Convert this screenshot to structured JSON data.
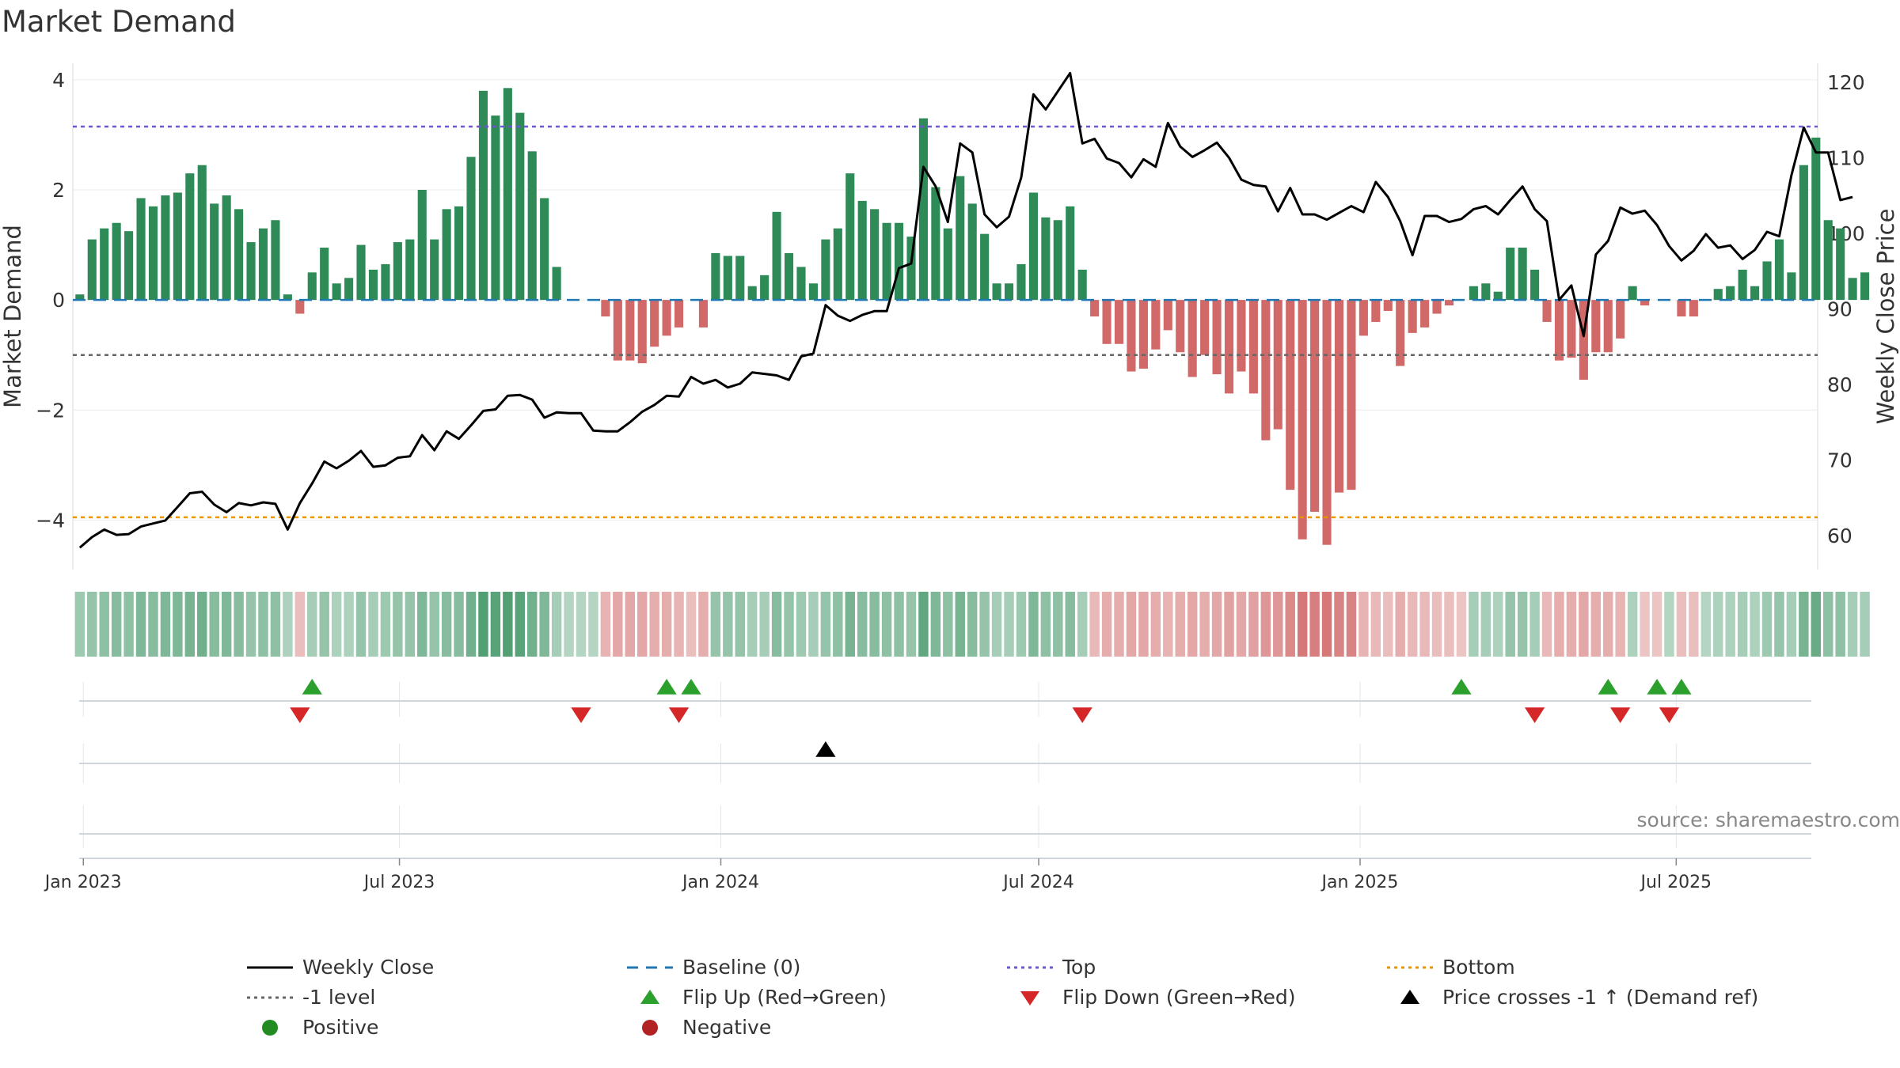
{
  "title": "Market Demand",
  "source": "source: sharemaestro.com",
  "colors": {
    "positive": "#2e8b57",
    "negative": "#cd5c5c",
    "price": "#000000",
    "baseline": "#1f77b4",
    "top": "#6a5acd",
    "bottom": "#e69500",
    "minus1": "#666666",
    "flip_up": "#2ca02c",
    "flip_down": "#d62728",
    "cross": "#000000",
    "legend_positive": "#228b22",
    "legend_negative": "#b22222"
  },
  "chart_data": {
    "type": "bar",
    "ylabel": "Market Demand",
    "y2label": "Weekly Close Price",
    "ylim": [
      -4.9,
      4.3
    ],
    "y_ticks": [
      4,
      2,
      0,
      -2,
      -4
    ],
    "y_tick_labels": [
      "4",
      "2",
      "0",
      "−2",
      "−4"
    ],
    "y2lim": [
      55.5,
      122.5
    ],
    "y2_ticks": [
      120,
      110,
      100,
      90,
      80,
      70,
      60
    ],
    "y2_tick_labels": [
      "120",
      "110",
      "100",
      "90",
      "80",
      "70",
      "60"
    ],
    "x_range": [
      "2022-12-26",
      "2025-09-20"
    ],
    "x_ticks": [
      "2023-01-01",
      "2023-07-01",
      "2024-01-01",
      "2024-07-01",
      "2025-01-01",
      "2025-07-01"
    ],
    "x_tick_labels": [
      "Jan 2023",
      "Jul 2023",
      "Jan 2024",
      "Jul 2024",
      "Jan 2025",
      "Jul 2025"
    ],
    "reference_lines": {
      "top": 3.15,
      "bottom": -3.95,
      "minus1": -1,
      "baseline": 0
    },
    "start_week": "2022-12-30",
    "bar_values": [
      0.1,
      1.1,
      1.3,
      1.4,
      1.25,
      1.85,
      1.7,
      1.9,
      1.95,
      2.3,
      2.45,
      1.75,
      1.9,
      1.65,
      1.05,
      1.3,
      1.45,
      0.1,
      -0.25,
      0.5,
      0.95,
      0.3,
      0.4,
      1.0,
      0.55,
      0.65,
      1.05,
      1.1,
      2.0,
      1.1,
      1.65,
      1.7,
      2.6,
      3.8,
      3.35,
      3.85,
      3.4,
      2.7,
      1.85,
      0.6,
      0,
      0,
      0,
      -0.3,
      -1.1,
      -1.1,
      -1.15,
      -0.85,
      -0.65,
      -0.5,
      0,
      -0.5,
      0.85,
      0.8,
      0.8,
      0.25,
      0.45,
      1.6,
      0.85,
      0.6,
      0.3,
      1.1,
      1.3,
      2.3,
      1.8,
      1.65,
      1.4,
      1.4,
      1.15,
      3.3,
      2.05,
      1.3,
      2.25,
      1.75,
      1.2,
      0.3,
      0.3,
      0.65,
      1.95,
      1.5,
      1.45,
      1.7,
      0.55,
      -0.3,
      -0.8,
      -0.8,
      -1.3,
      -1.25,
      -0.9,
      -0.55,
      -0.95,
      -1.4,
      -1.0,
      -1.35,
      -1.7,
      -1.3,
      -1.7,
      -2.55,
      -2.35,
      -3.45,
      -4.35,
      -3.85,
      -4.45,
      -3.5,
      -3.45,
      -0.65,
      -0.4,
      -0.2,
      -1.2,
      -0.6,
      -0.5,
      -0.25,
      -0.1,
      0,
      0.25,
      0.3,
      0.15,
      0.95,
      0.95,
      0.55,
      -0.4,
      -1.1,
      -1.05,
      -1.45,
      -0.95,
      -0.95,
      -0.7,
      0.25,
      -0.1,
      0,
      0,
      -0.3,
      -0.3,
      0,
      0.2,
      0.25,
      0.55,
      0.25,
      0.7,
      1.1,
      0.5,
      2.45,
      2.95,
      1.45,
      1.3,
      0.4,
      0.5
    ],
    "price_values": [
      58.4,
      59.8,
      60.8,
      60.1,
      60.2,
      61.2,
      61.6,
      62.0,
      63.8,
      65.6,
      65.8,
      64.1,
      63.1,
      64.3,
      64.0,
      64.4,
      64.2,
      60.8,
      64.3,
      66.9,
      69.8,
      68.9,
      69.9,
      71.2,
      69.1,
      69.3,
      70.3,
      70.5,
      73.3,
      71.3,
      73.8,
      72.8,
      74.6,
      76.5,
      76.7,
      78.5,
      78.6,
      78.0,
      75.6,
      76.3,
      76.2,
      76.2,
      73.9,
      73.8,
      73.8,
      75.0,
      76.4,
      77.3,
      78.5,
      78.4,
      81.0,
      80.1,
      80.6,
      79.6,
      80.1,
      81.6,
      81.4,
      81.2,
      80.6,
      83.7,
      84.1,
      90.5,
      89.1,
      88.4,
      89.2,
      89.7,
      89.7,
      95.4,
      96.0,
      108.8,
      106.2,
      101.5,
      111.9,
      110.7,
      102.5,
      100.8,
      102.2,
      107.4,
      118.4,
      116.4,
      118.8,
      121.2,
      111.9,
      112.5,
      109.9,
      109.3,
      107.4,
      109.8,
      108.8,
      114.6,
      111.5,
      110.1,
      111.0,
      112.0,
      110.0,
      107.1,
      106.4,
      106.2,
      102.9,
      106.0,
      102.5,
      102.5,
      101.8,
      102.7,
      103.6,
      102.8,
      106.8,
      104.8,
      101.6,
      97.1,
      102.3,
      102.3,
      101.5,
      101.9,
      103.2,
      103.6,
      102.5,
      104.4,
      106.2,
      103.2,
      101.6,
      91.2,
      93.1,
      86.4,
      97.2,
      99.0,
      103.4,
      102.6,
      103.0,
      101.1,
      98.3,
      96.4,
      97.7,
      99.9,
      98.1,
      98.4,
      96.6,
      97.8,
      100.2,
      99.6,
      107.7,
      114.0,
      110.7,
      110.7,
      104.4,
      104.8
    ],
    "heat_values": [
      0.4,
      0.45,
      0.5,
      0.55,
      0.5,
      0.6,
      0.55,
      0.6,
      0.6,
      0.65,
      0.7,
      0.55,
      0.6,
      0.55,
      0.45,
      0.5,
      0.5,
      0.3,
      -0.3,
      0.35,
      0.45,
      0.3,
      0.3,
      0.45,
      0.35,
      0.4,
      0.45,
      0.45,
      0.6,
      0.45,
      0.55,
      0.55,
      0.7,
      0.9,
      0.85,
      0.9,
      0.85,
      0.7,
      0.6,
      0.35,
      0.25,
      0.25,
      0.25,
      -0.4,
      -0.5,
      -0.5,
      -0.5,
      -0.45,
      -0.45,
      -0.4,
      -0.3,
      -0.45,
      0.45,
      0.45,
      0.45,
      0.35,
      0.35,
      0.55,
      0.45,
      0.4,
      0.35,
      0.45,
      0.5,
      0.65,
      0.55,
      0.55,
      0.5,
      0.5,
      0.45,
      0.8,
      0.6,
      0.5,
      0.65,
      0.55,
      0.45,
      0.35,
      0.35,
      0.4,
      0.6,
      0.5,
      0.5,
      0.55,
      0.35,
      -0.35,
      -0.45,
      -0.45,
      -0.5,
      -0.5,
      -0.45,
      -0.4,
      -0.45,
      -0.5,
      -0.45,
      -0.5,
      -0.55,
      -0.5,
      -0.55,
      -0.65,
      -0.65,
      -0.75,
      -0.9,
      -0.85,
      -0.9,
      -0.8,
      -0.8,
      -0.4,
      -0.35,
      -0.3,
      -0.45,
      -0.35,
      -0.35,
      -0.3,
      -0.3,
      -0.25,
      0.35,
      0.35,
      0.3,
      0.45,
      0.45,
      0.35,
      -0.35,
      -0.45,
      -0.45,
      -0.5,
      -0.45,
      -0.45,
      -0.4,
      0.3,
      -0.25,
      -0.25,
      0.25,
      -0.3,
      -0.3,
      0.25,
      0.3,
      0.3,
      0.35,
      0.3,
      0.4,
      0.45,
      0.35,
      0.65,
      0.75,
      0.5,
      0.5,
      0.35,
      0.35
    ],
    "flip_up_weeks": [
      19,
      48,
      50,
      113,
      125,
      129,
      131
    ],
    "flip_down_weeks": [
      18,
      41,
      49,
      82,
      119,
      126,
      130
    ],
    "price_cross_weeks": [
      61
    ]
  },
  "legend": {
    "items": [
      {
        "label": "Weekly Close",
        "marker": "line",
        "color": "#000000"
      },
      {
        "label": "Baseline (0)",
        "marker": "dash",
        "color": "#1f77b4"
      },
      {
        "label": "Top",
        "marker": "dot",
        "color": "#6a5acd"
      },
      {
        "label": "Bottom",
        "marker": "dot",
        "color": "#e69500"
      },
      {
        "label": "-1 level",
        "marker": "dot",
        "color": "#666666"
      },
      {
        "label": "Flip Up (Red→Green)",
        "marker": "tri-up",
        "color": "#2ca02c"
      },
      {
        "label": "Flip Down (Green→Red)",
        "marker": "tri-down",
        "color": "#d62728"
      },
      {
        "label": "Price crosses -1 ↑ (Demand ref)",
        "marker": "tri-up",
        "color": "#000000"
      },
      {
        "label": "Positive",
        "marker": "circle",
        "color": "#228b22"
      },
      {
        "label": "Negative",
        "marker": "circle",
        "color": "#b22222"
      }
    ]
  }
}
